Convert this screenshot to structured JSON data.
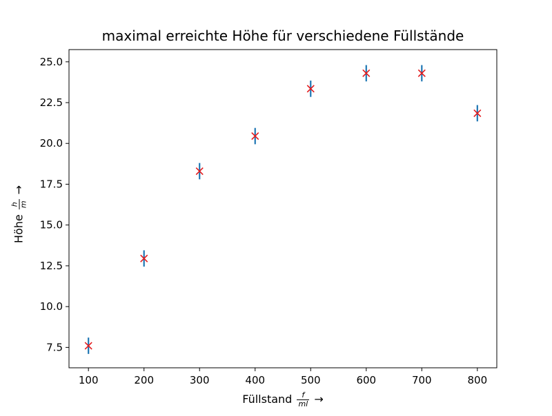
{
  "chart_data": {
    "type": "scatter",
    "title": "maximal erreichte Höhe für verschiedene Füllstände",
    "xlabel": {
      "text": "Füllstand",
      "frac_num": "f",
      "frac_den": "ml",
      "arrow": "→"
    },
    "ylabel": {
      "text": "Höhe",
      "frac_num": "h",
      "frac_den": "m",
      "arrow": "→"
    },
    "xlim": [
      65,
      835
    ],
    "ylim": [
      6.25,
      25.75
    ],
    "xticks": [
      100,
      200,
      300,
      400,
      500,
      600,
      700,
      800
    ],
    "xtick_labels": [
      "100",
      "200",
      "300",
      "400",
      "500",
      "600",
      "700",
      "800"
    ],
    "yticks": [
      7.5,
      10.0,
      12.5,
      15.0,
      17.5,
      20.0,
      22.5,
      25.0
    ],
    "ytick_labels": [
      "7.5",
      "10.0",
      "12.5",
      "15.0",
      "17.5",
      "20.0",
      "22.5",
      "25.0"
    ],
    "grid": false,
    "marker": "x",
    "marker_color": "#e31a1c",
    "errorbar_color": "#1f77b4",
    "x": [
      100,
      200,
      300,
      400,
      500,
      600,
      700,
      800
    ],
    "y": [
      7.6,
      12.95,
      18.3,
      20.45,
      23.35,
      24.3,
      24.3,
      21.85
    ],
    "yerr": [
      0.5,
      0.5,
      0.5,
      0.5,
      0.5,
      0.5,
      0.5,
      0.5
    ]
  }
}
